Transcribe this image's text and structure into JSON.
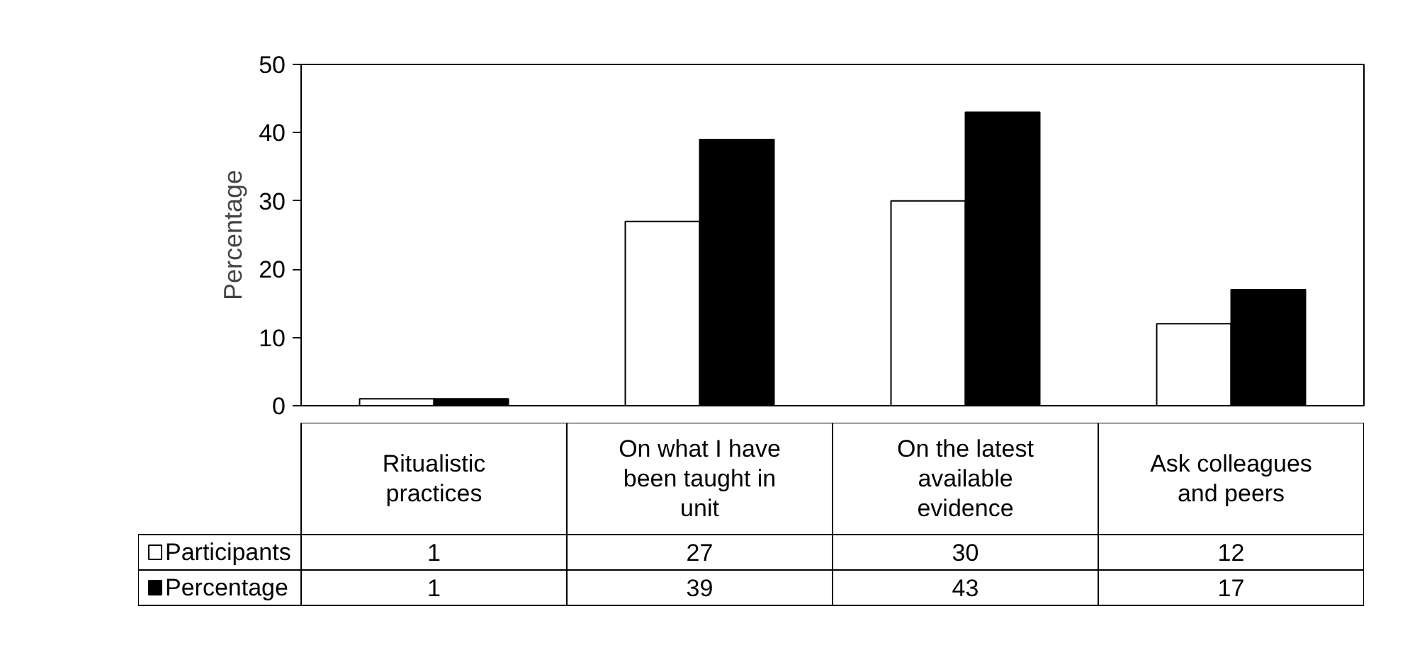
{
  "chart_data": {
    "type": "bar",
    "ylabel": "Percentage",
    "categories": [
      "Ritualistic practices",
      "On what I have been taught in unit",
      "On the latest available evidence",
      "Ask colleagues and peers"
    ],
    "series": [
      {
        "name": "Participants",
        "color": "#ffffff",
        "values": [
          1,
          27,
          30,
          12
        ]
      },
      {
        "name": "Percentage",
        "color": "#000000",
        "values": [
          1,
          39,
          43,
          17
        ]
      }
    ],
    "ylim": [
      0,
      50
    ],
    "yticks": [
      0,
      10,
      20,
      30,
      40,
      50
    ],
    "grid": false,
    "legend": "bottom",
    "data_labels": true
  }
}
